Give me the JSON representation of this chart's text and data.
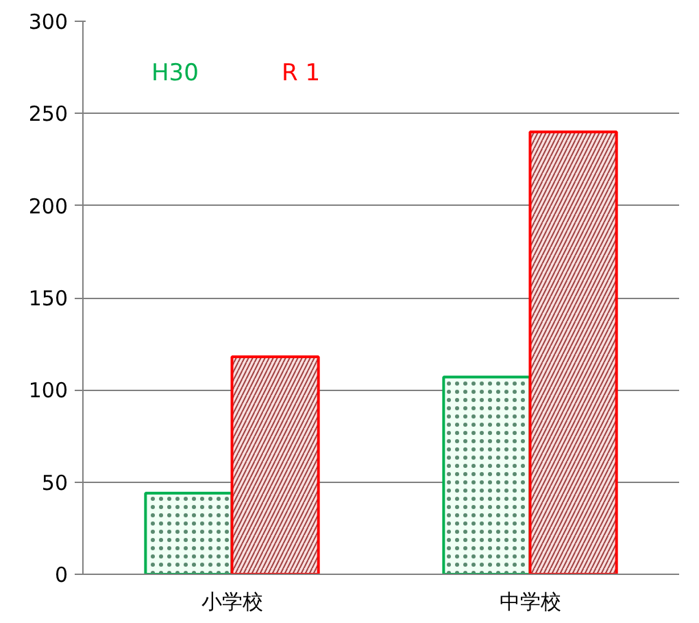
{
  "chart_data": {
    "type": "bar",
    "categories": [
      "小学校",
      "中学校"
    ],
    "series": [
      {
        "name": "H30",
        "color": "#00b050",
        "values": [
          44,
          107
        ]
      },
      {
        "name": "R 1",
        "color": "#ff0000",
        "values": [
          118,
          240
        ]
      }
    ],
    "ylim": [
      0,
      300
    ],
    "yticks": [
      0,
      50,
      100,
      150,
      200,
      250,
      300
    ],
    "grid": "y",
    "legend": "top left"
  }
}
